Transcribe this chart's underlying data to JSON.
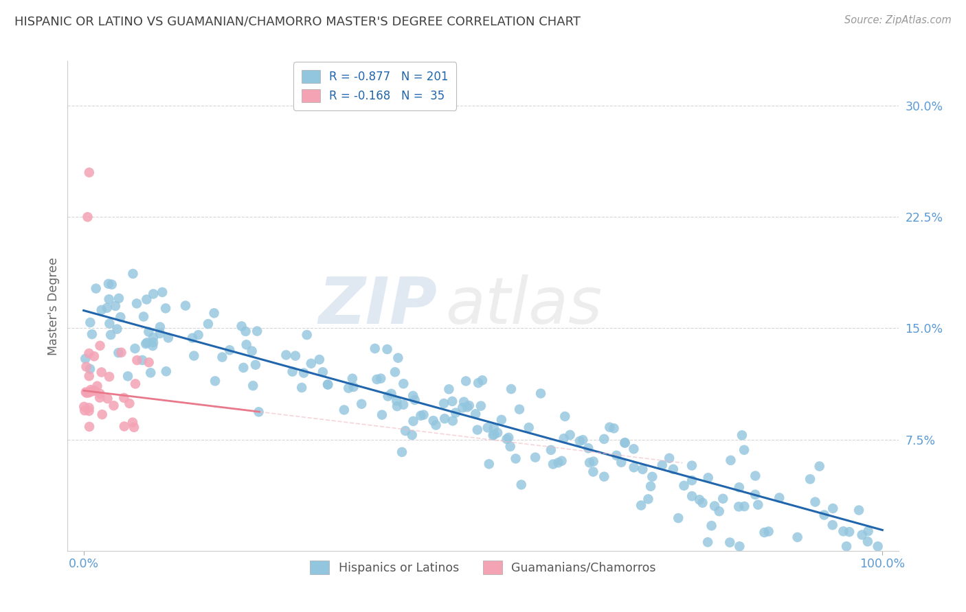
{
  "title": "HISPANIC OR LATINO VS GUAMANIAN/CHAMORRO MASTER'S DEGREE CORRELATION CHART",
  "source": "Source: ZipAtlas.com",
  "ylabel": "Master's Degree",
  "ytick_labels": [
    "7.5%",
    "15.0%",
    "22.5%",
    "30.0%"
  ],
  "ytick_values": [
    0.075,
    0.15,
    0.225,
    0.3
  ],
  "xlim": [
    -0.02,
    1.02
  ],
  "ylim": [
    0.0,
    0.33
  ],
  "watermark_zip": "ZIP",
  "watermark_atlas": "atlas",
  "legend_blue_label": "R = -0.877   N = 201",
  "legend_pink_label": "R = -0.168   N =  35",
  "blue_color": "#92c5de",
  "pink_color": "#f4a3b5",
  "blue_line_color": "#2166ac",
  "pink_line_color": "#e8788a",
  "pink_dash_color": "#f0b8c0",
  "background_color": "#ffffff",
  "grid_color": "#cccccc",
  "title_color": "#404040",
  "axis_tick_color": "#5b9bd5",
  "ylabel_color": "#666666",
  "legend_text_color": "#2166ac",
  "legend_label1": "Hispanics or Latinos",
  "legend_label2": "Guamanians/Chamorros",
  "blue_intercept": 0.162,
  "blue_slope": -0.148,
  "pink_intercept": 0.108,
  "pink_slope": -0.065,
  "blue_noise": 0.016,
  "pink_noise": 0.022,
  "blue_seed": 77,
  "pink_seed": 88
}
